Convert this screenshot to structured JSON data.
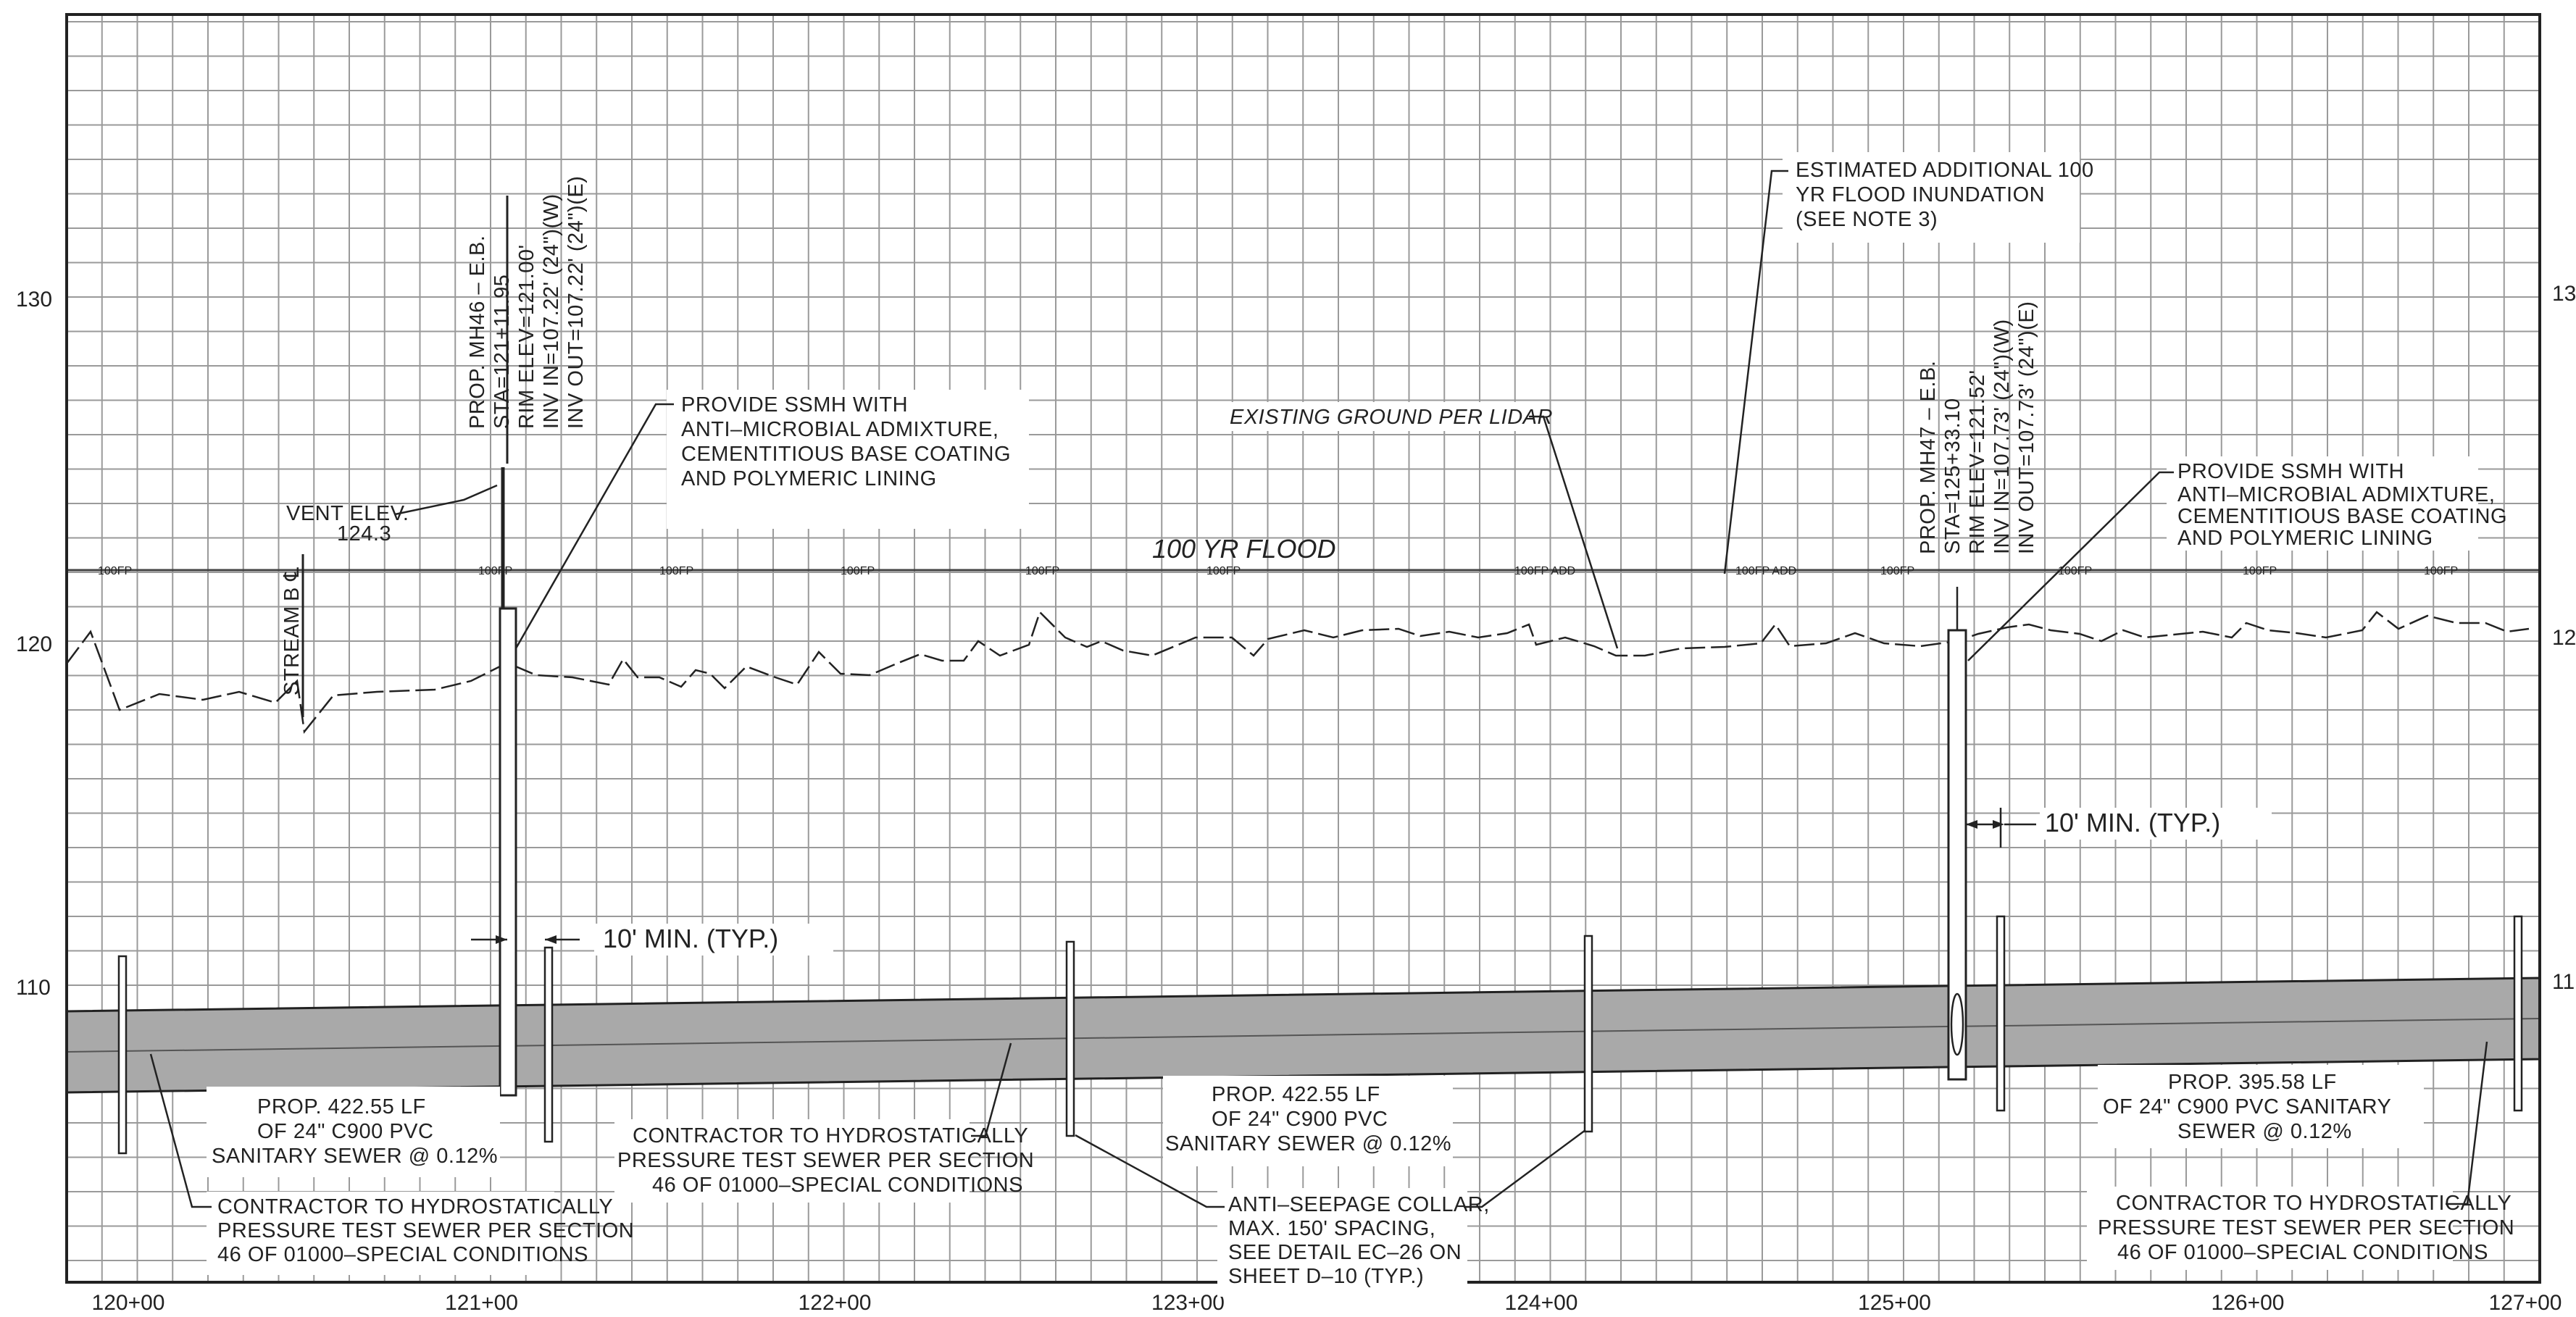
{
  "y_axis_left": [
    "130",
    "120",
    "110"
  ],
  "y_axis_right": [
    "13",
    "12",
    "11"
  ],
  "stations": [
    "120+00",
    "121+00",
    "122+00",
    "123+00",
    "124+00",
    "125+00",
    "126+00",
    "127+00"
  ],
  "flood": {
    "label": "100 YR FLOOD",
    "marker": "100FP",
    "marker_add": "100FP ADD"
  },
  "ground": {
    "label": "EXISTING GROUND PER LIDAR"
  },
  "stream": {
    "label": "STREAM",
    "symbol": "B ℄"
  },
  "vent": {
    "line1": "VENT ELEV.",
    "line2": "124.3"
  },
  "mh46": {
    "lines": [
      "PROP. MH46 – E.B.",
      "STA=121+11.95",
      "RIM ELEV=121.00'",
      "INV IN=107.22' (24\")(W)",
      "INV OUT=107.22' (24\")(E)"
    ]
  },
  "mh47": {
    "lines": [
      "PROP. MH47 – E.B.",
      "STA=125+33.10",
      "RIM ELEV=121.52'",
      "INV IN=107.73' (24\")(W)",
      "INV OUT=107.73' (24\")(E)"
    ]
  },
  "ssmh_note_1": [
    "PROVIDE SSMH WITH",
    "ANTI–MICROBIAL ADMIXTURE,",
    "CEMENTITIOUS BASE COATING",
    "AND POLYMERIC LINING"
  ],
  "ssmh_note_2": [
    "PROVIDE SSMH WITH",
    "ANTI–MICROBIAL ADMIXTURE,",
    "CEMENTITIOUS BASE COATING",
    "AND POLYMERIC LINING"
  ],
  "flood_note": [
    "ESTIMATED ADDITIONAL 100",
    "YR FLOOD INUNDATION",
    "(SEE NOTE 3)"
  ],
  "min_label_1": "10' MIN. (TYP.)",
  "min_label_2": "10' MIN. (TYP.)",
  "pipe_1": [
    "PROP. 422.55 LF",
    "OF 24\" C900 PVC",
    "SANITARY SEWER @ 0.12%"
  ],
  "pipe_2": [
    "PROP. 422.55 LF",
    "OF 24\" C900 PVC",
    "SANITARY SEWER @ 0.12%"
  ],
  "pipe_3": [
    "PROP. 395.58 LF",
    "OF 24\" C900 PVC SANITARY",
    "SEWER @ 0.12%"
  ],
  "hydro_note_1": [
    "CONTRACTOR TO HYDROSTATICALLY",
    "PRESSURE TEST SEWER PER SECTION",
    "46 OF 01000–SPECIAL CONDITIONS"
  ],
  "hydro_note_2": [
    "CONTRACTOR TO HYDROSTATICALLY",
    "PRESSURE TEST SEWER PER SECTION",
    "46 OF 01000–SPECIAL CONDITIONS"
  ],
  "hydro_note_3": [
    "CONTRACTOR TO HYDROSTATICALLY",
    "PRESSURE TEST SEWER PER SECTION",
    "46 OF 01000–SPECIAL CONDITIONS"
  ],
  "collar_note": [
    "ANTI–SEEPAGE COLLAR,",
    "MAX. 150' SPACING,",
    "SEE DETAIL EC–26 ON",
    "SHEET D–10 (TYP.)"
  ],
  "colors": {
    "pipe_fill": "#a9a9a9",
    "grid": "#9a9a9a",
    "ink": "#222222"
  }
}
